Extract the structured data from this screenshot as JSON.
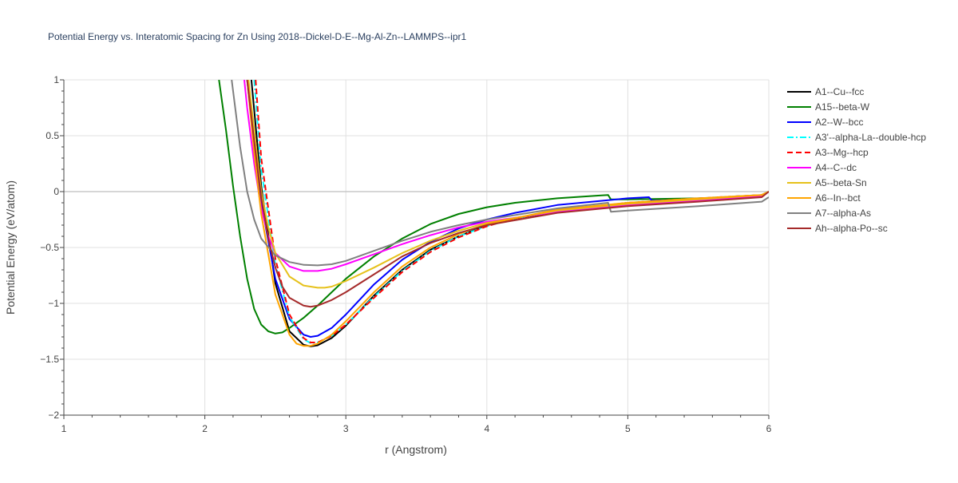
{
  "chart_data": {
    "type": "line",
    "title": "Potential Energy vs. Interatomic Spacing for Zn Using 2018--Dickel-D-E--Mg-Al-Zn--LAMMPS--ipr1",
    "xlabel": "r (Angstrom)",
    "ylabel": "Potential Energy (eV/atom)",
    "xlim": [
      1,
      6
    ],
    "ylim": [
      -2,
      1
    ],
    "xticks": [
      1,
      2,
      3,
      4,
      5,
      6
    ],
    "xtick_labels": [
      "1",
      "2",
      "3",
      "4",
      "5",
      "6"
    ],
    "yticks": [
      -2,
      -1.5,
      -1,
      -0.5,
      0,
      0.5,
      1
    ],
    "ytick_labels": [
      "−2",
      "−1.5",
      "−1",
      "−0.5",
      "0",
      "0.5",
      "1"
    ],
    "grid": true,
    "legend_position": "right",
    "series": [
      {
        "name": "A1--Cu--fcc",
        "color": "#000000",
        "dash": "solid",
        "x": [
          2.33,
          2.4,
          2.5,
          2.6,
          2.7,
          2.75,
          2.8,
          2.9,
          3.0,
          3.2,
          3.4,
          3.6,
          3.8,
          4.0,
          4.2,
          4.5,
          5.0,
          5.5,
          5.95,
          6.0
        ],
        "y": [
          1.0,
          0.05,
          -0.82,
          -1.25,
          -1.37,
          -1.385,
          -1.375,
          -1.31,
          -1.2,
          -0.93,
          -0.7,
          -0.52,
          -0.4,
          -0.3,
          -0.24,
          -0.18,
          -0.12,
          -0.08,
          -0.04,
          0.0
        ]
      },
      {
        "name": "A15--beta-W",
        "color": "#008000",
        "dash": "solid",
        "x": [
          2.1,
          2.15,
          2.2,
          2.25,
          2.3,
          2.35,
          2.4,
          2.45,
          2.5,
          2.55,
          2.6,
          2.7,
          2.8,
          2.9,
          3.0,
          3.2,
          3.4,
          3.6,
          3.8,
          4.0,
          4.2,
          4.5,
          4.8,
          4.86,
          4.88,
          5.0,
          5.5,
          5.95,
          6.0
        ],
        "y": [
          1.0,
          0.55,
          0.05,
          -0.4,
          -0.78,
          -1.05,
          -1.19,
          -1.25,
          -1.27,
          -1.26,
          -1.22,
          -1.13,
          -1.02,
          -0.9,
          -0.78,
          -0.58,
          -0.42,
          -0.29,
          -0.2,
          -0.14,
          -0.1,
          -0.06,
          -0.035,
          -0.03,
          -0.07,
          -0.07,
          -0.06,
          -0.04,
          0.0
        ]
      },
      {
        "name": "A2--W--bcc",
        "color": "#0000ff",
        "dash": "solid",
        "x": [
          2.3,
          2.35,
          2.4,
          2.5,
          2.6,
          2.7,
          2.75,
          2.8,
          2.9,
          3.0,
          3.2,
          3.4,
          3.6,
          3.8,
          4.0,
          4.2,
          4.5,
          5.0,
          5.15,
          5.17,
          5.5,
          5.95,
          6.0
        ],
        "y": [
          1.0,
          0.4,
          -0.1,
          -0.78,
          -1.14,
          -1.28,
          -1.3,
          -1.29,
          -1.22,
          -1.1,
          -0.83,
          -0.61,
          -0.45,
          -0.33,
          -0.25,
          -0.19,
          -0.12,
          -0.06,
          -0.05,
          -0.08,
          -0.07,
          -0.04,
          0.0
        ]
      },
      {
        "name": "A3'--alpha-La--double-hcp",
        "color": "#00ffff",
        "dash": "dashdot",
        "x": [
          2.35,
          2.4,
          2.5,
          2.6,
          2.7,
          2.75,
          2.8,
          2.9,
          3.0,
          3.2,
          3.4,
          3.6,
          3.8,
          4.0,
          4.2,
          4.5,
          5.0,
          5.5,
          5.95,
          6.0
        ],
        "y": [
          1.0,
          0.2,
          -0.65,
          -1.12,
          -1.32,
          -1.355,
          -1.35,
          -1.29,
          -1.19,
          -0.94,
          -0.71,
          -0.53,
          -0.4,
          -0.31,
          -0.24,
          -0.17,
          -0.1,
          -0.06,
          -0.03,
          0.0
        ]
      },
      {
        "name": "A3--Mg--hcp",
        "color": "#ff0000",
        "dash": "dash",
        "x": [
          2.36,
          2.4,
          2.5,
          2.6,
          2.7,
          2.75,
          2.8,
          2.9,
          3.0,
          3.2,
          3.4,
          3.6,
          3.8,
          4.0,
          4.2,
          4.5,
          5.0,
          5.5,
          5.95,
          6.0
        ],
        "y": [
          1.0,
          0.3,
          -0.6,
          -1.1,
          -1.31,
          -1.35,
          -1.35,
          -1.29,
          -1.19,
          -0.95,
          -0.72,
          -0.54,
          -0.41,
          -0.31,
          -0.24,
          -0.17,
          -0.1,
          -0.06,
          -0.03,
          0.0
        ]
      },
      {
        "name": "A4--C--dc",
        "color": "#ff00ff",
        "dash": "solid",
        "x": [
          2.28,
          2.3,
          2.35,
          2.4,
          2.45,
          2.5,
          2.6,
          2.7,
          2.8,
          2.9,
          3.0,
          3.2,
          3.4,
          3.6,
          3.8,
          4.0,
          4.5,
          5.0,
          5.5,
          5.95,
          6.0
        ],
        "y": [
          1.0,
          0.75,
          0.25,
          -0.15,
          -0.4,
          -0.55,
          -0.67,
          -0.71,
          -0.71,
          -0.69,
          -0.65,
          -0.56,
          -0.47,
          -0.39,
          -0.32,
          -0.27,
          -0.18,
          -0.12,
          -0.08,
          -0.04,
          0.0
        ]
      },
      {
        "name": "A5--beta-Sn",
        "color": "#e6c11a",
        "dash": "solid",
        "x": [
          2.31,
          2.35,
          2.4,
          2.45,
          2.5,
          2.6,
          2.7,
          2.8,
          2.85,
          2.9,
          3.0,
          3.2,
          3.4,
          3.6,
          3.8,
          4.0,
          4.5,
          5.0,
          5.5,
          5.95,
          6.0
        ],
        "y": [
          1.0,
          0.55,
          0.0,
          -0.32,
          -0.55,
          -0.76,
          -0.84,
          -0.86,
          -0.86,
          -0.85,
          -0.8,
          -0.68,
          -0.55,
          -0.44,
          -0.35,
          -0.28,
          -0.17,
          -0.11,
          -0.07,
          -0.03,
          0.0
        ]
      },
      {
        "name": "A6--In--bct",
        "color": "#ffa500",
        "dash": "solid",
        "x": [
          2.3,
          2.35,
          2.4,
          2.5,
          2.6,
          2.65,
          2.7,
          2.75,
          2.8,
          2.9,
          3.0,
          3.2,
          3.4,
          3.6,
          3.8,
          4.0,
          4.5,
          5.0,
          5.5,
          5.95,
          6.0
        ],
        "y": [
          1.0,
          0.35,
          -0.2,
          -0.92,
          -1.28,
          -1.36,
          -1.38,
          -1.38,
          -1.36,
          -1.28,
          -1.16,
          -0.9,
          -0.67,
          -0.5,
          -0.38,
          -0.29,
          -0.16,
          -0.1,
          -0.06,
          -0.03,
          0.0
        ]
      },
      {
        "name": "A7--alpha-As",
        "color": "#808080",
        "dash": "solid",
        "x": [
          2.19,
          2.25,
          2.3,
          2.35,
          2.4,
          2.5,
          2.6,
          2.7,
          2.8,
          2.9,
          3.0,
          3.2,
          3.4,
          3.6,
          3.8,
          4.0,
          4.5,
          4.86,
          4.88,
          5.0,
          5.5,
          5.95,
          6.0
        ],
        "y": [
          1.0,
          0.4,
          0.0,
          -0.25,
          -0.42,
          -0.57,
          -0.63,
          -0.655,
          -0.66,
          -0.65,
          -0.62,
          -0.53,
          -0.44,
          -0.36,
          -0.3,
          -0.25,
          -0.15,
          -0.1,
          -0.18,
          -0.17,
          -0.13,
          -0.09,
          -0.05
        ]
      },
      {
        "name": "Ah--alpha-Po--sc",
        "color": "#a52a2a",
        "dash": "solid",
        "x": [
          2.3,
          2.35,
          2.4,
          2.45,
          2.5,
          2.55,
          2.6,
          2.7,
          2.75,
          2.8,
          2.9,
          3.0,
          3.2,
          3.4,
          3.6,
          3.8,
          4.0,
          4.5,
          5.0,
          5.5,
          5.95,
          6.0
        ],
        "y": [
          1.0,
          0.45,
          -0.05,
          -0.42,
          -0.68,
          -0.85,
          -0.95,
          -1.02,
          -1.03,
          -1.02,
          -0.97,
          -0.9,
          -0.74,
          -0.58,
          -0.46,
          -0.37,
          -0.3,
          -0.19,
          -0.13,
          -0.09,
          -0.05,
          0.0
        ]
      }
    ]
  }
}
